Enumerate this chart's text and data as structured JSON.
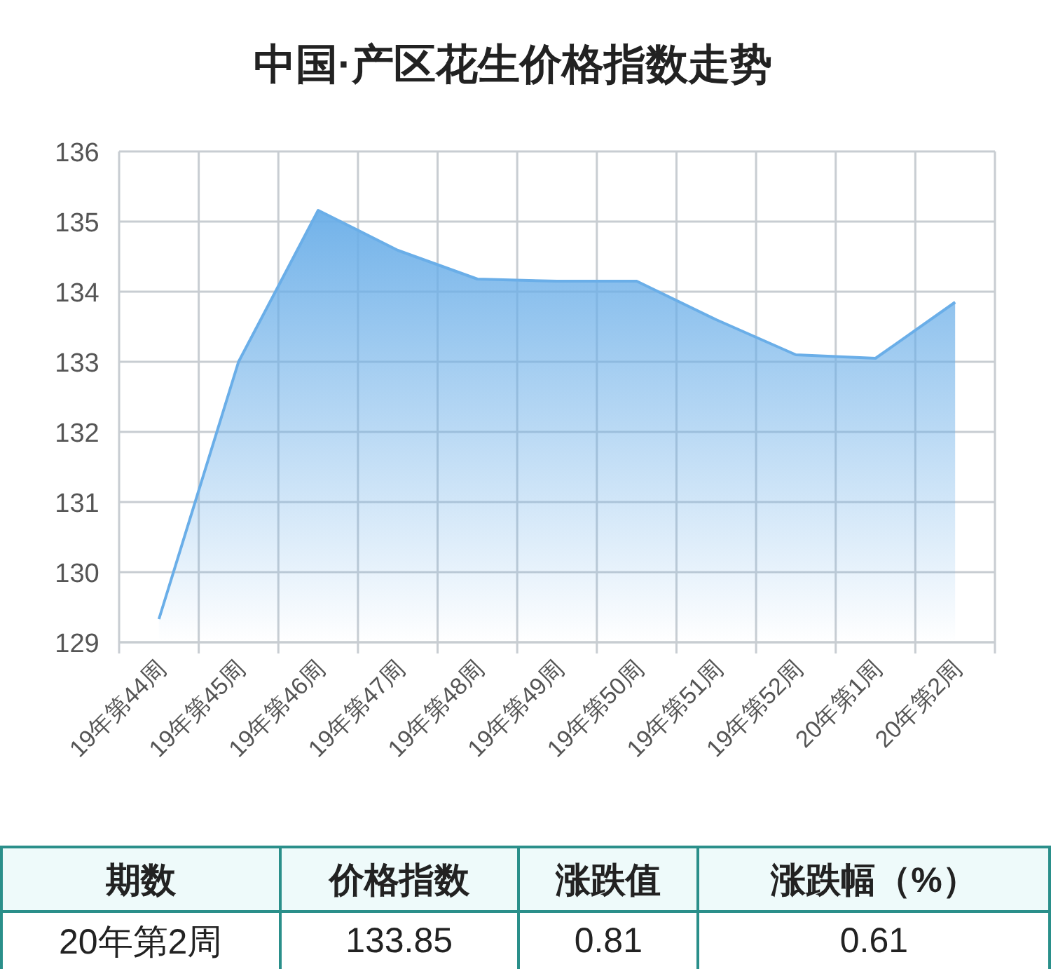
{
  "chart_data": {
    "type": "area",
    "title": "中国·产区花生价格指数走势",
    "categories": [
      "19年第44周",
      "19年第45周",
      "19年第46周",
      "19年第47周",
      "19年第48周",
      "19年第49周",
      "19年第50周",
      "19年第51周",
      "19年第52周",
      "20年第1周",
      "20年第2周"
    ],
    "series": [
      {
        "color": "#6aaee8",
        "values": [
          129.33,
          133.0,
          135.16,
          134.59,
          134.18,
          134.15,
          134.15,
          133.6,
          133.1,
          133.05,
          133.85
        ]
      }
    ],
    "ylim": [
      129,
      136
    ],
    "yticks": [
      129,
      130,
      131,
      132,
      133,
      134,
      135,
      136
    ],
    "grid": true,
    "annotations": [
      "期数",
      "价格指数",
      "涨跌值",
      "涨跌幅（%）",
      "20年第2周",
      "133.85",
      "0.81",
      "0.61"
    ]
  }
}
